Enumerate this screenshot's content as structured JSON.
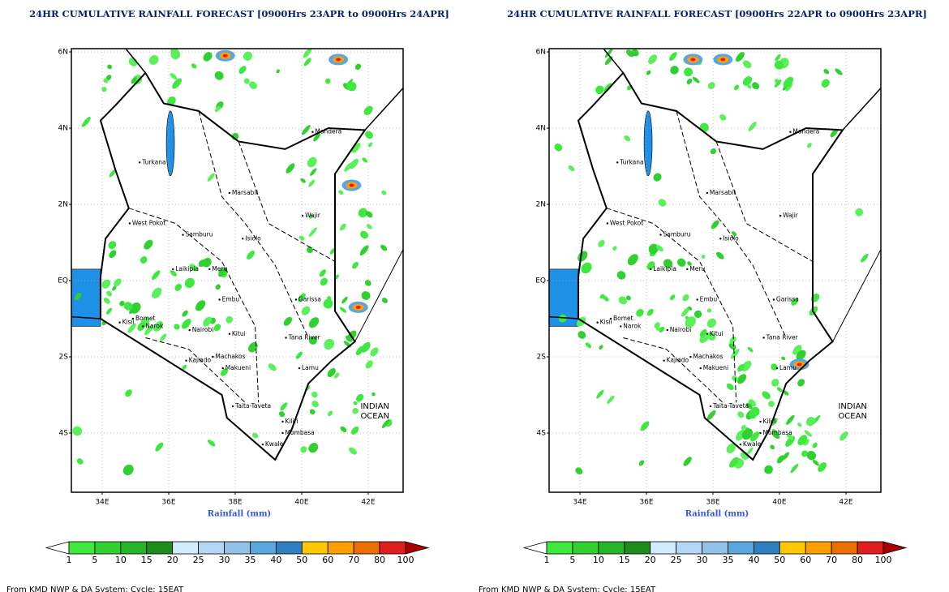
{
  "panels": [
    {
      "title": "24HR CUMULATIVE RAINFALL FORECAST [0900Hrs 23APR to 0900Hrs 24APR]",
      "lat_labels": [
        "6N",
        "4N",
        "2N",
        "EQ",
        "2S",
        "4S"
      ],
      "lon_labels": [
        "34E",
        "36E",
        "38E",
        "40E",
        "42E"
      ],
      "xlabel": "Rainfall (mm)",
      "colorbar": {
        "labels": [
          "1",
          "5",
          "10",
          "15",
          "20",
          "25",
          "30",
          "35",
          "40",
          "50",
          "60",
          "70",
          "80",
          "100"
        ],
        "colors": [
          "#3ee83e",
          "#2fd02f",
          "#28b428",
          "#1c8c1c",
          "#d2ecff",
          "#b4d7f5",
          "#94c2e6",
          "#5aa6de",
          "#2e7fc0",
          "#ffc800",
          "#ffa000",
          "#ec6e00",
          "#e01e1e",
          "#a80000"
        ],
        "low_color": "#ffffff"
      },
      "places": [
        "Turkana",
        "Marsabit",
        "Mandera",
        "Wajir",
        "West Pokot",
        "Samburu",
        "Isiolo",
        "Laikipia",
        "Meru",
        "Garissa",
        "Tana River",
        "Kitui",
        "Machakos",
        "Kajiado",
        "Makueni",
        "Narok",
        "Nairobi",
        "Taita-Taveta",
        "Lamu",
        "Kilifi",
        "Mombasa",
        "Kwale",
        "Embu",
        "Bomet",
        "Kisii"
      ],
      "ocean_label": [
        "INDIAN",
        "OCEAN"
      ],
      "footer": "From KMD NWP & DA System: Cycle: 15EAT"
    },
    {
      "title": "24HR CUMULATIVE RAINFALL FORECAST [0900Hrs 22APR to 0900Hrs 23APR]",
      "lat_labels": [
        "6N",
        "4N",
        "2N",
        "EQ",
        "2S",
        "4S"
      ],
      "lon_labels": [
        "34E",
        "36E",
        "38E",
        "40E",
        "42E"
      ],
      "xlabel": "Rainfall (mm)",
      "colorbar": {
        "labels": [
          "1",
          "5",
          "10",
          "15",
          "20",
          "25",
          "30",
          "35",
          "40",
          "50",
          "60",
          "70",
          "80",
          "100"
        ],
        "colors": [
          "#3ee83e",
          "#2fd02f",
          "#28b428",
          "#1c8c1c",
          "#d2ecff",
          "#b4d7f5",
          "#94c2e6",
          "#5aa6de",
          "#2e7fc0",
          "#ffc800",
          "#ffa000",
          "#ec6e00",
          "#e01e1e",
          "#a80000"
        ],
        "low_color": "#ffffff"
      },
      "places": [
        "Turkana",
        "Marsabit",
        "Mandera",
        "Wajir",
        "West Pokot",
        "Samburu",
        "Isiolo",
        "Laikipia",
        "Meru",
        "Garissa",
        "Tana River",
        "Kitui",
        "Machakos",
        "Kajiado",
        "Makueni",
        "Narok",
        "Nairobi",
        "Taita-Taveta",
        "Lamu",
        "Kilifi",
        "Mombasa",
        "Kwale",
        "Embu",
        "Bomet",
        "Kisii"
      ],
      "ocean_label": [
        "INDIAN",
        "OCEAN"
      ],
      "footer": "From KMD NWP & DA System: Cycle: 15EAT"
    }
  ]
}
